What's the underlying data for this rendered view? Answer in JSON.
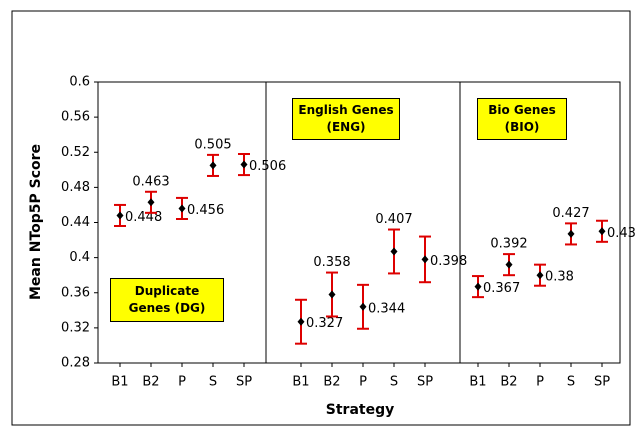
{
  "chart_data": [
    {
      "type": "errorbar",
      "title": "Duplicate Genes (DG)",
      "ylabel": "Mean NTop5P Score",
      "xlabel": "Strategy",
      "categories": [
        "B1",
        "B2",
        "P",
        "S",
        "SP"
      ],
      "values": [
        0.448,
        0.463,
        0.456,
        0.505,
        0.506
      ],
      "errors": [
        0.012,
        0.012,
        0.012,
        0.012,
        0.012
      ],
      "ylim": [
        0.28,
        0.6
      ],
      "yticks": [
        0.28,
        0.32,
        0.36,
        0.4,
        0.44,
        0.48,
        0.52,
        0.56,
        0.6
      ],
      "point_color": "#000000",
      "error_color": "#dd0000"
    },
    {
      "type": "errorbar",
      "title": "English Genes (ENG)",
      "categories": [
        "B1",
        "B2",
        "P",
        "S",
        "SP"
      ],
      "values": [
        0.327,
        0.358,
        0.344,
        0.407,
        0.398
      ],
      "errors": [
        0.025,
        0.025,
        0.025,
        0.025,
        0.026
      ],
      "ylim": [
        0.28,
        0.6
      ],
      "point_color": "#000000",
      "error_color": "#dd0000"
    },
    {
      "type": "errorbar",
      "title": "Bio Genes (BIO)",
      "categories": [
        "B1",
        "B2",
        "P",
        "S",
        "SP"
      ],
      "values": [
        0.367,
        0.392,
        0.38,
        0.427,
        0.43
      ],
      "errors": [
        0.012,
        0.012,
        0.012,
        0.012,
        0.012
      ],
      "ylim": [
        0.28,
        0.6
      ],
      "point_color": "#000000",
      "error_color": "#dd0000"
    }
  ]
}
